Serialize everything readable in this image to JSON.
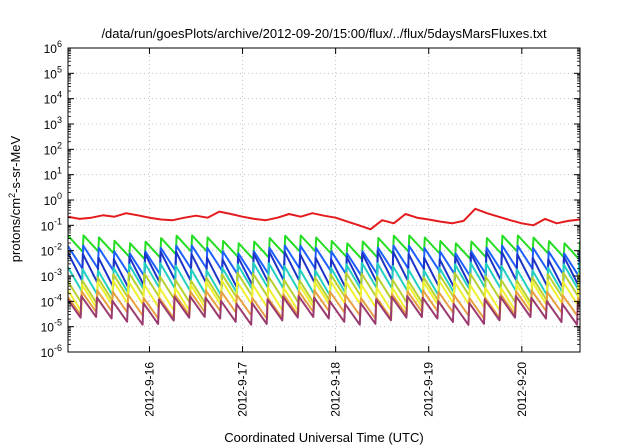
{
  "chart_data": {
    "type": "line",
    "title": "/data/run/goesPlots/archive/2012-09-20/15:00/flux/../flux/5daysMarsFluxes.txt",
    "xlabel": "Coordinated Universal Time (UTC)",
    "ylabel": {
      "prefix": "protons/cm",
      "sup": "2",
      "suffix": "-s-sr-MeV"
    },
    "y_scale": "log",
    "ylim_exponents": [
      -6,
      6
    ],
    "y_tick_labels": [
      {
        "base": "10",
        "exp": "-6"
      },
      {
        "base": "10",
        "exp": "-5"
      },
      {
        "base": "10",
        "exp": "-4"
      },
      {
        "base": "10",
        "exp": "-3"
      },
      {
        "base": "10",
        "exp": "-2"
      },
      {
        "base": "10",
        "exp": "-1"
      },
      {
        "base": "10",
        "exp": "0"
      },
      {
        "base": "10",
        "exp": "1"
      },
      {
        "base": "10",
        "exp": "2"
      },
      {
        "base": "10",
        "exp": "3"
      },
      {
        "base": "10",
        "exp": "4"
      },
      {
        "base": "10",
        "exp": "5"
      },
      {
        "base": "10",
        "exp": "6"
      }
    ],
    "x_range": [
      "2012-09-15 03:00",
      "2012-09-20 15:00"
    ],
    "x_ticks": [
      "2012-9-16",
      "2012-9-17",
      "2012-9-18",
      "2012-9-19",
      "2012-9-20"
    ],
    "grid": true,
    "series": [
      {
        "color": "#e41a1c",
        "x": [
          "2012-09-15 03:00",
          "2012-09-15 06:00",
          "2012-09-15 09:00",
          "2012-09-15 12:00",
          "2012-09-15 15:00",
          "2012-09-15 18:00",
          "2012-09-15 21:00",
          "2012-09-16 00:00",
          "2012-09-16 03:00",
          "2012-09-16 06:00",
          "2012-09-16 09:00",
          "2012-09-16 12:00",
          "2012-09-16 15:00",
          "2012-09-16 18:00",
          "2012-09-16 21:00",
          "2012-09-17 00:00",
          "2012-09-17 03:00",
          "2012-09-17 06:00",
          "2012-09-17 09:00",
          "2012-09-17 12:00",
          "2012-09-17 15:00",
          "2012-09-17 18:00",
          "2012-09-17 21:00",
          "2012-09-18 00:00",
          "2012-09-18 03:00",
          "2012-09-18 06:00",
          "2012-09-18 09:00",
          "2012-09-18 12:00",
          "2012-09-18 15:00",
          "2012-09-18 18:00",
          "2012-09-18 21:00",
          "2012-09-19 00:00",
          "2012-09-19 03:00",
          "2012-09-19 06:00",
          "2012-09-19 09:00",
          "2012-09-19 12:00",
          "2012-09-19 15:00",
          "2012-09-19 18:00",
          "2012-09-19 21:00",
          "2012-09-20 00:00",
          "2012-09-20 03:00",
          "2012-09-20 06:00",
          "2012-09-20 09:00",
          "2012-09-20 12:00",
          "2012-09-20 15:00"
        ],
        "y": [
          0.22,
          0.18,
          0.2,
          0.25,
          0.22,
          0.3,
          0.25,
          0.2,
          0.17,
          0.16,
          0.2,
          0.24,
          0.2,
          0.35,
          0.28,
          0.22,
          0.18,
          0.16,
          0.2,
          0.28,
          0.22,
          0.3,
          0.24,
          0.2,
          0.14,
          0.1,
          0.07,
          0.16,
          0.12,
          0.28,
          0.2,
          0.17,
          0.14,
          0.12,
          0.15,
          0.45,
          0.3,
          0.22,
          0.16,
          0.12,
          0.1,
          0.18,
          0.12,
          0.15,
          0.17
        ]
      },
      {
        "color": "#22dd22",
        "sawtooth": {
          "low": 0.007,
          "high": 0.03,
          "phase": 0.0
        }
      },
      {
        "color": "#1f5fff",
        "sawtooth": {
          "low": 0.0015,
          "high": 0.012,
          "phase": 0.02
        }
      },
      {
        "color": "#1c33c8",
        "sawtooth": {
          "low": 0.0005,
          "high": 0.007,
          "phase": 0.04
        }
      },
      {
        "color": "#22d0c0",
        "sawtooth": {
          "low": 0.00025,
          "high": 0.0025,
          "phase": 0.06
        }
      },
      {
        "color": "#b8d030",
        "sawtooth": {
          "low": 0.00012,
          "high": 0.001,
          "phase": 0.08
        }
      },
      {
        "color": "#f0f030",
        "sawtooth": {
          "low": 6e-05,
          "high": 0.0005,
          "phase": 0.1
        }
      },
      {
        "color": "#e8a040",
        "sawtooth": {
          "low": 3e-05,
          "high": 0.0002,
          "phase": 0.12
        }
      },
      {
        "color": "#9a3a6e",
        "sawtooth": {
          "low": 1.8e-05,
          "high": 0.00012,
          "phase": 0.14
        }
      }
    ]
  }
}
